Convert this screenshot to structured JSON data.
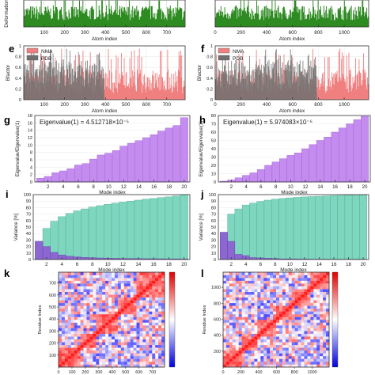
{
  "panel_labels": [
    "e",
    "f",
    "g",
    "h",
    "i",
    "j",
    "k",
    "l"
  ],
  "chart_data": [
    {
      "id": "deformation_left",
      "type": "bar",
      "xlabel": "Atom index",
      "ylabel": "Deformation",
      "xlim": [
        0,
        790
      ],
      "xticks": [
        100,
        200,
        300,
        400,
        500,
        600,
        700
      ],
      "ylim": [
        0,
        1
      ],
      "color": "#2e8b22",
      "grid": true
    },
    {
      "id": "deformation_right",
      "type": "bar",
      "xlabel": "Atom index",
      "ylabel": "",
      "xlim": [
        0,
        1190
      ],
      "xticks": [
        0,
        200,
        400,
        600,
        800,
        1000
      ],
      "ylim": [
        0,
        1
      ],
      "color": "#2e8b22",
      "grid": true
    },
    {
      "id": "bfactor_e",
      "type": "bar",
      "xlabel": "Atom index",
      "ylabel": "Bfactor",
      "xlim": [
        0,
        790
      ],
      "xticks": [
        100,
        200,
        300,
        400,
        500,
        600,
        700
      ],
      "ylim": [
        0,
        1
      ],
      "yticks": [
        "0",
        "0.2",
        "0.4",
        "0.6",
        "0.8",
        "1"
      ],
      "legend": "top-left",
      "series": [
        {
          "name": "NMA",
          "color": "#f08080",
          "range": [
            0,
            790
          ]
        },
        {
          "name": "PDB",
          "color": "#707070",
          "range": [
            0,
            395
          ]
        }
      ]
    },
    {
      "id": "bfactor_f",
      "type": "bar",
      "xlabel": "Atom index",
      "ylabel": "Bfactor",
      "xlim": [
        0,
        1190
      ],
      "xticks": [
        0,
        200,
        400,
        600,
        800,
        1000
      ],
      "ylim": [
        0,
        1
      ],
      "yticks": [
        "0",
        "0.2",
        "0.4",
        "0.6",
        "0.8",
        "1"
      ],
      "legend": "top-left",
      "series": [
        {
          "name": "NMA",
          "color": "#f08080",
          "range": [
            0,
            1190
          ]
        },
        {
          "name": "PDB",
          "color": "#707070",
          "range": [
            0,
            790
          ]
        }
      ]
    },
    {
      "id": "eigen_g",
      "type": "bar",
      "xlabel": "Mode index",
      "ylabel": "Eigenvalue/Eigenvalue(1)",
      "annotation": "Eigenvalue(1) = 4.512718×10⁻⁵",
      "categories": [
        1,
        2,
        3,
        4,
        5,
        6,
        7,
        8,
        9,
        10,
        11,
        12,
        13,
        14,
        15,
        16,
        17,
        18,
        19,
        20
      ],
      "xticks": [
        2,
        4,
        6,
        8,
        10,
        12,
        14,
        16,
        18,
        20
      ],
      "values": [
        1,
        1.5,
        2.5,
        3,
        3.6,
        4.6,
        5,
        6.2,
        7.3,
        7.8,
        8.5,
        9.7,
        10.5,
        11.2,
        12,
        12.8,
        13.8,
        14.6,
        15.3,
        17.4
      ],
      "ylim": [
        0,
        18
      ],
      "yticks": [
        0,
        2,
        4,
        6,
        8,
        10,
        12,
        14,
        16,
        18
      ],
      "color": "#c58cf0",
      "edge": "#9b5ad0"
    },
    {
      "id": "eigen_h",
      "type": "bar",
      "xlabel": "Mode index",
      "ylabel": "Eigenvalue/Eigenvalue(1)",
      "annotation": "Eigenvalue(1) = 5.974083×10⁻⁶",
      "categories": [
        1,
        2,
        3,
        4,
        5,
        6,
        7,
        8,
        9,
        10,
        11,
        12,
        13,
        14,
        15,
        16,
        17,
        18,
        19,
        20
      ],
      "xticks": [
        2,
        4,
        6,
        8,
        10,
        12,
        14,
        16,
        18,
        20
      ],
      "values": [
        1,
        2.5,
        5,
        8,
        11,
        15,
        20,
        24,
        28,
        32,
        35,
        40,
        45,
        50,
        54,
        60,
        65,
        70,
        75,
        79
      ],
      "ylim": [
        0,
        80
      ],
      "yticks": [
        0,
        10,
        20,
        30,
        40,
        50,
        60,
        70,
        80
      ],
      "color": "#c58cf0",
      "edge": "#9b5ad0"
    },
    {
      "id": "variance_i",
      "type": "bar",
      "xlabel": "Mode index",
      "ylabel": "Variance [%]",
      "categories": [
        1,
        2,
        3,
        4,
        5,
        6,
        7,
        8,
        9,
        10,
        11,
        12,
        13,
        14,
        15,
        16,
        17,
        18,
        19,
        20
      ],
      "xticks": [
        2,
        4,
        6,
        8,
        10,
        12,
        14,
        16,
        18,
        20
      ],
      "ylim": [
        0,
        100
      ],
      "yticks": [
        0,
        10,
        20,
        30,
        40,
        50,
        60,
        70,
        80,
        90,
        100
      ],
      "series": [
        {
          "color": "#7fd6bf",
          "edge": "#4aa88f",
          "values": [
            28,
            48,
            59,
            66,
            71,
            75,
            78,
            81,
            83,
            85,
            87,
            88.5,
            90,
            91.5,
            93,
            94,
            95.5,
            96.5,
            97.8,
            100
          ]
        },
        {
          "color": "#8c67d1",
          "edge": "#5e3fa3",
          "values": [
            28,
            20,
            11,
            7,
            5,
            4,
            3.2,
            2.8,
            2.4,
            2.1,
            1.9,
            1.7,
            1.5,
            1.4,
            1.3,
            1.2,
            1.1,
            1,
            0.9,
            0.8
          ]
        }
      ]
    },
    {
      "id": "variance_j",
      "type": "bar",
      "xlabel": "Mode index",
      "ylabel": "Variance [%]",
      "categories": [
        1,
        2,
        3,
        4,
        5,
        6,
        7,
        8,
        9,
        10,
        11,
        12,
        13,
        14,
        15,
        16,
        17,
        18,
        19,
        20
      ],
      "xticks": [
        2,
        4,
        6,
        8,
        10,
        12,
        14,
        16,
        18,
        20
      ],
      "ylim": [
        0,
        100
      ],
      "yticks": [
        0,
        10,
        20,
        30,
        40,
        50,
        60,
        70,
        80,
        90,
        100
      ],
      "series": [
        {
          "color": "#7fd6bf",
          "edge": "#4aa88f",
          "values": [
            42,
            70,
            78,
            84,
            87,
            89.5,
            91.5,
            93,
            94,
            95,
            95.8,
            96.5,
            97,
            97.5,
            98,
            98.4,
            98.8,
            99.2,
            99.6,
            100
          ]
        },
        {
          "color": "#8c67d1",
          "edge": "#5e3fa3",
          "values": [
            42,
            28,
            8,
            6,
            3,
            2.5,
            2,
            1.5,
            1,
            1,
            0.8,
            0.7,
            0.5,
            0.5,
            0.5,
            0.4,
            0.4,
            0.4,
            0.4,
            0.4
          ]
        }
      ]
    },
    {
      "id": "corr_k",
      "type": "heatmap",
      "xlabel": "",
      "ylabel": "Residue Index",
      "n": 790,
      "xticks": [
        0,
        100,
        200,
        300,
        400,
        500,
        600,
        700
      ],
      "yticks": [
        100,
        200,
        300,
        400,
        500,
        600,
        700
      ],
      "colorbar": {
        "min": -1,
        "max": 1,
        "colors": [
          "#0000dd",
          "#ffffff",
          "#dd0000"
        ]
      }
    },
    {
      "id": "corr_l",
      "type": "heatmap",
      "xlabel": "",
      "ylabel": "Residue Index",
      "n": 1190,
      "xticks": [
        0,
        200,
        400,
        600,
        800,
        1000
      ],
      "yticks": [
        200,
        400,
        600,
        800,
        1000
      ],
      "colorbar": {
        "min": -1,
        "max": 1,
        "colors": [
          "#0000dd",
          "#ffffff",
          "#dd0000"
        ]
      }
    }
  ]
}
